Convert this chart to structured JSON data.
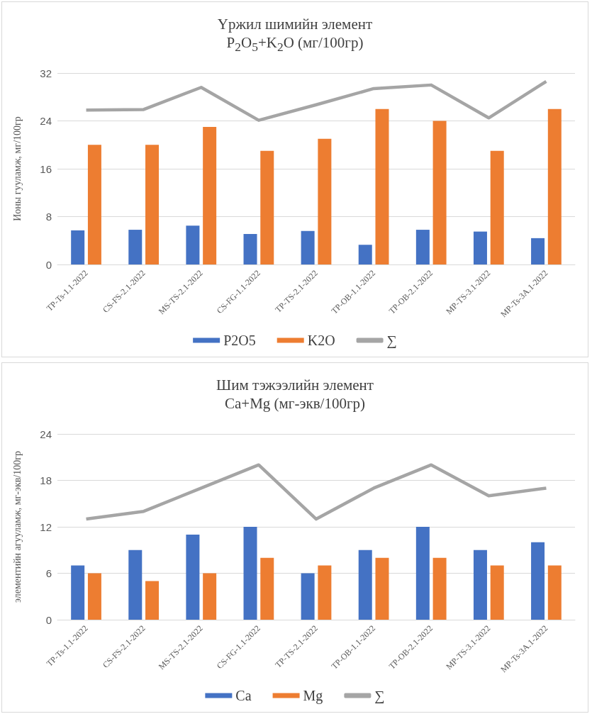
{
  "chart_data": [
    {
      "type": "bar",
      "title": "Үржил шимийн элемент",
      "subtitle": "P$_{2}$O$_{5}$+K$_{2}$O (мг/100гр)",
      "ylabel": "Ионы гууламж, мг/100гр",
      "categories": [
        "TP-Ts-1.1-2022",
        "CS-FS-2.1-2022",
        "MS-TS-2.1-2022",
        "CS-FG-1.1-2022",
        "TP-TS-2.1-2022",
        "TP-OB-1.1-2022",
        "TP-OB-2.1-2022",
        "MP-TS-3.1-2022",
        "MP-Ts-3A.1-2022"
      ],
      "series": [
        {
          "name": "P2O5",
          "color": "#4472c4",
          "values": [
            5.7,
            5.8,
            6.5,
            5.1,
            5.6,
            3.3,
            5.8,
            5.5,
            4.4
          ]
        },
        {
          "name": "K2O",
          "color": "#ed7d31",
          "values": [
            20,
            20,
            23,
            19,
            21,
            26,
            24,
            19,
            26
          ]
        },
        {
          "name": "∑",
          "type": "line",
          "color": "#a5a5a5",
          "values": [
            25.8,
            25.9,
            29.6,
            24.1,
            26.7,
            29.4,
            30.0,
            24.5,
            30.6
          ]
        }
      ],
      "ylim": [
        0,
        32
      ],
      "yticks": [
        0,
        8,
        16,
        24,
        32
      ],
      "grid": "y",
      "legend": "bottom",
      "marker": "none"
    },
    {
      "type": "bar",
      "title": "Шим тэжээлийн элемент",
      "subtitle": "Ca+Mg (мг-экв/100гр)",
      "ylabel": "элементийн агууламж, мг-экв/100гр",
      "categories": [
        "TP-Ts-1.1-2022",
        "CS-FS-2.1-2022",
        "MS-TS-2.1-2022",
        "CS-FG-1.1-2022",
        "TP-TS-2.1-2022",
        "TP-OB-1.1-2022",
        "TP-OB-2.1-2022",
        "MP-TS-3.1-2022",
        "MP-Ts-3A.1-2022"
      ],
      "series": [
        {
          "name": "Ca",
          "color": "#4472c4",
          "values": [
            7,
            9,
            11,
            12,
            6,
            9,
            12,
            9,
            10
          ]
        },
        {
          "name": "Mg",
          "color": "#ed7d31",
          "values": [
            6,
            5,
            6,
            8,
            7,
            8,
            8,
            7,
            7
          ]
        },
        {
          "name": "∑",
          "type": "line",
          "color": "#a5a5a5",
          "values": [
            13,
            14,
            17,
            20,
            13,
            17,
            20,
            16,
            17
          ]
        }
      ],
      "ylim": [
        0,
        24
      ],
      "yticks": [
        0,
        6,
        12,
        18,
        24
      ],
      "grid": "y",
      "legend": "bottom",
      "marker": "none"
    }
  ]
}
